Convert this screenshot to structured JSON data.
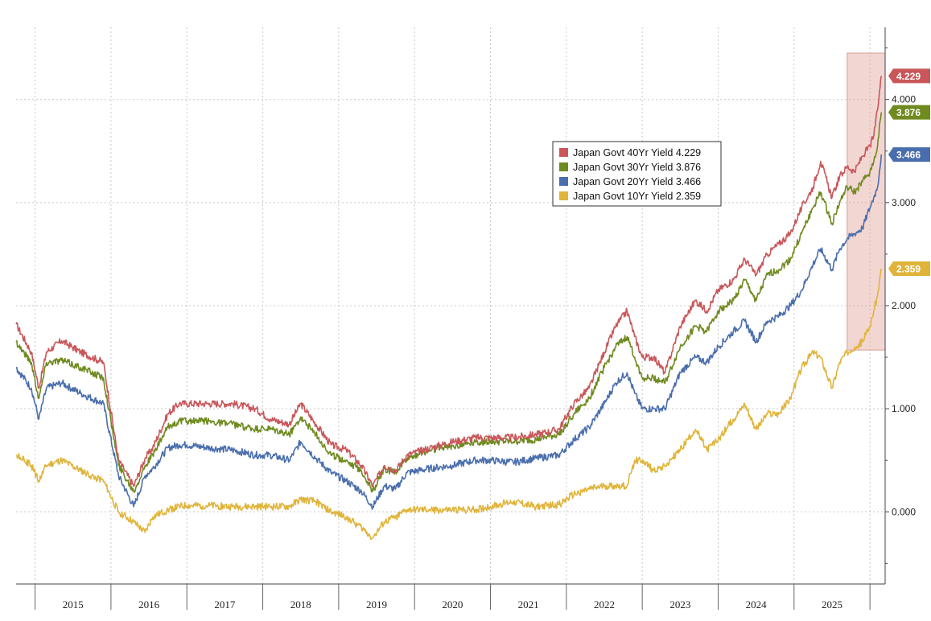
{
  "chart_data": {
    "type": "line",
    "title": "",
    "xlabel": "",
    "ylabel": "",
    "x_range": [
      2014.75,
      2026.2
    ],
    "ylim": [
      -0.7,
      4.7
    ],
    "yticks": [
      0,
      1,
      2,
      3,
      4
    ],
    "ytick_labels": [
      "0.000",
      "1.000",
      "2.000",
      "3.000",
      "4.000"
    ],
    "year_labels": [
      "2015",
      "2016",
      "2017",
      "2018",
      "2019",
      "2020",
      "2021",
      "2022",
      "2023",
      "2024",
      "2025"
    ],
    "grid": true,
    "legend_position": "upper-right-center",
    "highlight_region": {
      "x_start": 2025.7,
      "x_end": 2026.2,
      "y_start": 1.57,
      "y_end": 4.45
    },
    "series": [
      {
        "name": "Japan Govt 40Yr Yield",
        "last_value": "4.229",
        "legend_label": "Japan Govt 40Yr Yield 4.229",
        "color": "#c9575a",
        "x": [
          2014.75,
          2014.95,
          2015.05,
          2015.15,
          2015.35,
          2015.6,
          2015.9,
          2016.1,
          2016.3,
          2016.45,
          2016.55,
          2016.75,
          2016.9,
          2017.0,
          2017.3,
          2017.6,
          2017.9,
          2018.1,
          2018.35,
          2018.5,
          2018.7,
          2018.9,
          2019.1,
          2019.3,
          2019.45,
          2019.6,
          2019.75,
          2019.9,
          2020.2,
          2020.5,
          2020.8,
          2021.0,
          2021.3,
          2021.6,
          2021.9,
          2022.1,
          2022.3,
          2022.5,
          2022.65,
          2022.8,
          2022.9,
          2023.0,
          2023.15,
          2023.3,
          2023.5,
          2023.7,
          2023.85,
          2024.0,
          2024.2,
          2024.35,
          2024.5,
          2024.65,
          2024.8,
          2024.95,
          2025.1,
          2025.25,
          2025.35,
          2025.5,
          2025.6,
          2025.7,
          2025.8,
          2025.9,
          2026.0,
          2026.05,
          2026.1,
          2026.15
        ],
        "y": [
          1.82,
          1.55,
          1.2,
          1.55,
          1.66,
          1.55,
          1.45,
          0.5,
          0.25,
          0.52,
          0.62,
          0.95,
          1.05,
          1.05,
          1.05,
          1.05,
          1.0,
          0.9,
          0.85,
          1.05,
          0.85,
          0.65,
          0.6,
          0.45,
          0.25,
          0.45,
          0.4,
          0.55,
          0.62,
          0.68,
          0.72,
          0.72,
          0.72,
          0.75,
          0.8,
          1.05,
          1.2,
          1.55,
          1.8,
          1.95,
          1.7,
          1.5,
          1.5,
          1.35,
          1.8,
          2.05,
          1.95,
          2.15,
          2.25,
          2.45,
          2.3,
          2.5,
          2.6,
          2.7,
          2.95,
          3.15,
          3.4,
          3.05,
          3.25,
          3.35,
          3.3,
          3.45,
          3.55,
          3.65,
          3.9,
          4.229
        ]
      },
      {
        "name": "Japan Govt 30Yr Yield",
        "last_value": "3.876",
        "legend_label": "Japan Govt 30Yr Yield 3.876",
        "color": "#6f8a1f",
        "x": [
          2014.75,
          2014.95,
          2015.05,
          2015.15,
          2015.35,
          2015.6,
          2015.9,
          2016.1,
          2016.3,
          2016.45,
          2016.55,
          2016.75,
          2016.9,
          2017.0,
          2017.3,
          2017.6,
          2017.9,
          2018.1,
          2018.35,
          2018.5,
          2018.7,
          2018.9,
          2019.1,
          2019.3,
          2019.45,
          2019.6,
          2019.75,
          2019.9,
          2020.2,
          2020.5,
          2020.8,
          2021.0,
          2021.3,
          2021.6,
          2021.9,
          2022.1,
          2022.3,
          2022.5,
          2022.65,
          2022.8,
          2022.9,
          2023.0,
          2023.15,
          2023.3,
          2023.5,
          2023.7,
          2023.85,
          2024.0,
          2024.2,
          2024.35,
          2024.5,
          2024.65,
          2024.8,
          2024.95,
          2025.1,
          2025.25,
          2025.35,
          2025.5,
          2025.6,
          2025.7,
          2025.8,
          2025.9,
          2026.0,
          2026.05,
          2026.1,
          2026.15
        ],
        "y": [
          1.65,
          1.45,
          1.1,
          1.45,
          1.47,
          1.4,
          1.3,
          0.45,
          0.2,
          0.45,
          0.55,
          0.82,
          0.88,
          0.88,
          0.88,
          0.85,
          0.8,
          0.8,
          0.75,
          0.92,
          0.75,
          0.55,
          0.5,
          0.4,
          0.2,
          0.42,
          0.38,
          0.52,
          0.6,
          0.64,
          0.68,
          0.68,
          0.68,
          0.7,
          0.75,
          0.95,
          1.1,
          1.4,
          1.6,
          1.7,
          1.5,
          1.3,
          1.3,
          1.25,
          1.6,
          1.8,
          1.75,
          1.95,
          2.05,
          2.25,
          2.05,
          2.3,
          2.35,
          2.45,
          2.7,
          2.95,
          3.1,
          2.8,
          3.0,
          3.15,
          3.1,
          3.2,
          3.3,
          3.4,
          3.55,
          3.876
        ]
      },
      {
        "name": "Japan Govt 20Yr Yield",
        "last_value": "3.466",
        "legend_label": "Japan Govt 20Yr Yield 3.466",
        "color": "#4a6ead",
        "x": [
          2014.75,
          2014.95,
          2015.05,
          2015.15,
          2015.35,
          2015.6,
          2015.9,
          2016.1,
          2016.3,
          2016.45,
          2016.55,
          2016.75,
          2016.9,
          2017.0,
          2017.3,
          2017.6,
          2017.9,
          2018.1,
          2018.35,
          2018.5,
          2018.7,
          2018.9,
          2019.1,
          2019.3,
          2019.45,
          2019.6,
          2019.75,
          2019.9,
          2020.2,
          2020.5,
          2020.8,
          2021.0,
          2021.3,
          2021.6,
          2021.9,
          2022.1,
          2022.3,
          2022.5,
          2022.65,
          2022.8,
          2022.9,
          2023.0,
          2023.15,
          2023.3,
          2023.5,
          2023.7,
          2023.85,
          2024.0,
          2024.2,
          2024.35,
          2024.5,
          2024.65,
          2024.8,
          2024.95,
          2025.1,
          2025.25,
          2025.35,
          2025.5,
          2025.6,
          2025.7,
          2025.8,
          2025.9,
          2026.0,
          2026.05,
          2026.1,
          2026.15
        ],
        "y": [
          1.4,
          1.2,
          0.9,
          1.2,
          1.25,
          1.15,
          1.05,
          0.35,
          0.05,
          0.35,
          0.42,
          0.62,
          0.65,
          0.65,
          0.62,
          0.6,
          0.55,
          0.55,
          0.5,
          0.68,
          0.52,
          0.38,
          0.3,
          0.2,
          0.05,
          0.25,
          0.22,
          0.38,
          0.42,
          0.45,
          0.5,
          0.5,
          0.48,
          0.52,
          0.55,
          0.7,
          0.82,
          1.05,
          1.25,
          1.35,
          1.15,
          1.0,
          1.0,
          1.0,
          1.35,
          1.5,
          1.45,
          1.6,
          1.75,
          1.85,
          1.65,
          1.85,
          1.9,
          2.0,
          2.15,
          2.4,
          2.55,
          2.35,
          2.55,
          2.65,
          2.7,
          2.75,
          2.95,
          3.05,
          3.15,
          3.466
        ]
      },
      {
        "name": "Japan Govt 10Yr Yield",
        "last_value": "2.359",
        "legend_label": "Japan Govt 10Yr Yield 2.359",
        "color": "#e0b43a",
        "x": [
          2014.75,
          2014.95,
          2015.05,
          2015.15,
          2015.35,
          2015.6,
          2015.9,
          2016.1,
          2016.3,
          2016.45,
          2016.55,
          2016.75,
          2016.9,
          2017.0,
          2017.3,
          2017.6,
          2017.9,
          2018.1,
          2018.35,
          2018.5,
          2018.7,
          2018.9,
          2019.1,
          2019.3,
          2019.45,
          2019.6,
          2019.75,
          2019.9,
          2020.2,
          2020.5,
          2020.8,
          2021.0,
          2021.3,
          2021.6,
          2021.9,
          2022.1,
          2022.3,
          2022.5,
          2022.65,
          2022.8,
          2022.9,
          2023.0,
          2023.15,
          2023.3,
          2023.5,
          2023.7,
          2023.85,
          2024.0,
          2024.2,
          2024.35,
          2024.5,
          2024.65,
          2024.8,
          2024.95,
          2025.1,
          2025.25,
          2025.35,
          2025.5,
          2025.6,
          2025.7,
          2025.8,
          2025.9,
          2026.0,
          2026.05,
          2026.1,
          2026.15
        ],
        "y": [
          0.55,
          0.45,
          0.3,
          0.45,
          0.5,
          0.4,
          0.3,
          0.0,
          -0.1,
          -0.2,
          -0.05,
          0.02,
          0.05,
          0.06,
          0.06,
          0.05,
          0.05,
          0.05,
          0.05,
          0.12,
          0.1,
          0.0,
          -0.05,
          -0.15,
          -0.25,
          -0.1,
          -0.05,
          0.02,
          0.02,
          0.02,
          0.02,
          0.05,
          0.1,
          0.05,
          0.07,
          0.17,
          0.22,
          0.25,
          0.25,
          0.25,
          0.5,
          0.5,
          0.4,
          0.45,
          0.6,
          0.8,
          0.6,
          0.7,
          0.9,
          1.05,
          0.8,
          0.95,
          0.95,
          1.1,
          1.4,
          1.55,
          1.5,
          1.2,
          1.45,
          1.55,
          1.6,
          1.65,
          1.8,
          1.95,
          2.1,
          2.359
        ]
      }
    ]
  }
}
